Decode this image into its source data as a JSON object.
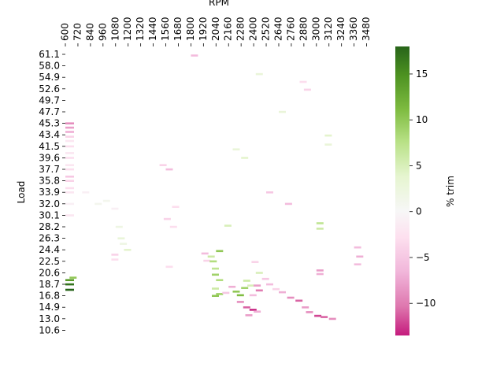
{
  "chart_data": {
    "type": "heatmap",
    "title": "",
    "xlabel": "RPM",
    "ylabel": "Load",
    "x_tick_labels": [
      "600",
      "720",
      "840",
      "960",
      "1080",
      "1200",
      "1320",
      "1440",
      "1560",
      "1680",
      "1800",
      "1920",
      "2040",
      "2160",
      "2280",
      "2400",
      "2520",
      "2640",
      "2760",
      "2880",
      "3000",
      "3120",
      "3240",
      "3360",
      "3480"
    ],
    "y_tick_labels": [
      "61.1",
      "58.0",
      "54.9",
      "52.6",
      "49.7",
      "47.7",
      "45.3",
      "43.4",
      "41.5",
      "39.6",
      "37.7",
      "35.8",
      "33.9",
      "32.0",
      "30.1",
      "28.2",
      "26.3",
      "24.4",
      "22.5",
      "20.6",
      "18.7",
      "16.8",
      "14.9",
      "13.0",
      "10.6"
    ],
    "xlim": [
      600,
      3560
    ],
    "ylim": [
      10.6,
      61.1
    ],
    "colorbar": {
      "label": "% trim",
      "ticks": [
        "−10",
        "−5",
        "0",
        "5",
        "10",
        "15"
      ],
      "tick_values": [
        -10,
        -5,
        0,
        5,
        10,
        15
      ],
      "vmin": -13.5,
      "vmax": 18,
      "colormap": "PiYG"
    },
    "cells": [
      {
        "rpm": 600,
        "load": 45.3,
        "v": -9
      },
      {
        "rpm": 600,
        "load": 44.6,
        "v": -8
      },
      {
        "rpm": 600,
        "load": 43.9,
        "v": -7
      },
      {
        "rpm": 600,
        "load": 43.1,
        "v": -4
      },
      {
        "rpm": 600,
        "load": 42.4,
        "v": -2
      },
      {
        "rpm": 600,
        "load": 41.5,
        "v": -3
      },
      {
        "rpm": 600,
        "load": 40.4,
        "v": -2
      },
      {
        "rpm": 600,
        "load": 39.6,
        "v": -3
      },
      {
        "rpm": 600,
        "load": 38.4,
        "v": -2
      },
      {
        "rpm": 600,
        "load": 37.7,
        "v": -3
      },
      {
        "rpm": 600,
        "load": 36.5,
        "v": -5
      },
      {
        "rpm": 600,
        "load": 35.8,
        "v": -4
      },
      {
        "rpm": 600,
        "load": 34.6,
        "v": -3
      },
      {
        "rpm": 600,
        "load": 33.9,
        "v": -2
      },
      {
        "rpm": 600,
        "load": 32.0,
        "v": -1
      },
      {
        "rpm": 600,
        "load": 30.1,
        "v": -2
      },
      {
        "rpm": 600,
        "load": 19.4,
        "v": 14
      },
      {
        "rpm": 600,
        "load": 18.7,
        "v": 17
      },
      {
        "rpm": 600,
        "load": 17.8,
        "v": 18
      },
      {
        "rpm": 640,
        "load": 19.8,
        "v": 10
      },
      {
        "rpm": 760,
        "load": 33.9,
        "v": -1
      },
      {
        "rpm": 880,
        "load": 32.0,
        "v": 1
      },
      {
        "rpm": 960,
        "load": 32.5,
        "v": 1
      },
      {
        "rpm": 1040,
        "load": 31.2,
        "v": -1
      },
      {
        "rpm": 1080,
        "load": 28.2,
        "v": 2
      },
      {
        "rpm": 1100,
        "load": 26.3,
        "v": 3
      },
      {
        "rpm": 1120,
        "load": 25.4,
        "v": 2
      },
      {
        "rpm": 1160,
        "load": 24.4,
        "v": 4
      },
      {
        "rpm": 1040,
        "load": 23.6,
        "v": -4
      },
      {
        "rpm": 1040,
        "load": 22.8,
        "v": -3
      },
      {
        "rpm": 1500,
        "load": 38.4,
        "v": -4
      },
      {
        "rpm": 1560,
        "load": 37.7,
        "v": -6
      },
      {
        "rpm": 1540,
        "load": 29.5,
        "v": -4
      },
      {
        "rpm": 1600,
        "load": 28.2,
        "v": -3
      },
      {
        "rpm": 1620,
        "load": 31.5,
        "v": -3
      },
      {
        "rpm": 1560,
        "load": 21.6,
        "v": -3
      },
      {
        "rpm": 1800,
        "load": 60.8,
        "v": -6
      },
      {
        "rpm": 1900,
        "load": 23.8,
        "v": -6
      },
      {
        "rpm": 1920,
        "load": 22.6,
        "v": -4
      },
      {
        "rpm": 1960,
        "load": 23.3,
        "v": 6
      },
      {
        "rpm": 1980,
        "load": 22.5,
        "v": 8
      },
      {
        "rpm": 2000,
        "load": 21.3,
        "v": 7
      },
      {
        "rpm": 2000,
        "load": 20.3,
        "v": 9
      },
      {
        "rpm": 2040,
        "load": 24.2,
        "v": 10
      },
      {
        "rpm": 2040,
        "load": 19.4,
        "v": 8
      },
      {
        "rpm": 2000,
        "load": 18.0,
        "v": 6
      },
      {
        "rpm": 2040,
        "load": 17.1,
        "v": 9
      },
      {
        "rpm": 2000,
        "load": 16.8,
        "v": 10
      },
      {
        "rpm": 2100,
        "load": 17.3,
        "v": -5
      },
      {
        "rpm": 2120,
        "load": 28.4,
        "v": 5
      },
      {
        "rpm": 2160,
        "load": 18.3,
        "v": -7
      },
      {
        "rpm": 2200,
        "load": 17.5,
        "v": 10
      },
      {
        "rpm": 2240,
        "load": 16.9,
        "v": 11
      },
      {
        "rpm": 2280,
        "load": 18.1,
        "v": 9
      },
      {
        "rpm": 2240,
        "load": 15.8,
        "v": -9
      },
      {
        "rpm": 2300,
        "load": 14.9,
        "v": -11
      },
      {
        "rpm": 2360,
        "load": 14.5,
        "v": -13
      },
      {
        "rpm": 2320,
        "load": 13.6,
        "v": -8
      },
      {
        "rpm": 2400,
        "load": 14.2,
        "v": -7
      },
      {
        "rpm": 2300,
        "load": 19.3,
        "v": 6
      },
      {
        "rpm": 2340,
        "load": 18.5,
        "v": 5
      },
      {
        "rpm": 2360,
        "load": 16.9,
        "v": -6
      },
      {
        "rpm": 2400,
        "load": 18.5,
        "v": -8
      },
      {
        "rpm": 2420,
        "load": 17.7,
        "v": -10
      },
      {
        "rpm": 2380,
        "load": 22.4,
        "v": -4
      },
      {
        "rpm": 2420,
        "load": 20.6,
        "v": 5
      },
      {
        "rpm": 2480,
        "load": 19.6,
        "v": -5
      },
      {
        "rpm": 2520,
        "load": 18.7,
        "v": -6
      },
      {
        "rpm": 2580,
        "load": 17.9,
        "v": -4
      },
      {
        "rpm": 2640,
        "load": 17.4,
        "v": -7
      },
      {
        "rpm": 2720,
        "load": 16.5,
        "v": -9
      },
      {
        "rpm": 2800,
        "load": 16.0,
        "v": -11
      },
      {
        "rpm": 2860,
        "load": 14.9,
        "v": -8
      },
      {
        "rpm": 2900,
        "load": 14.1,
        "v": -9
      },
      {
        "rpm": 2980,
        "load": 13.5,
        "v": -12
      },
      {
        "rpm": 3040,
        "load": 13.3,
        "v": -11
      },
      {
        "rpm": 3120,
        "load": 13.0,
        "v": -9
      },
      {
        "rpm": 3000,
        "load": 28.8,
        "v": 7
      },
      {
        "rpm": 3000,
        "load": 27.9,
        "v": 6
      },
      {
        "rpm": 3000,
        "load": 21.0,
        "v": -8
      },
      {
        "rpm": 3000,
        "load": 20.4,
        "v": -7
      },
      {
        "rpm": 3080,
        "load": 43.3,
        "v": 4
      },
      {
        "rpm": 3080,
        "load": 41.8,
        "v": 3
      },
      {
        "rpm": 2700,
        "load": 32.0,
        "v": -6
      },
      {
        "rpm": 2520,
        "load": 33.9,
        "v": -5
      },
      {
        "rpm": 3360,
        "load": 24.8,
        "v": -6
      },
      {
        "rpm": 3380,
        "load": 23.3,
        "v": -7
      },
      {
        "rpm": 3360,
        "load": 22.0,
        "v": -6
      },
      {
        "rpm": 2880,
        "load": 52.4,
        "v": -4
      },
      {
        "rpm": 2840,
        "load": 54.0,
        "v": -3
      },
      {
        "rpm": 2640,
        "load": 47.7,
        "v": 3
      },
      {
        "rpm": 2420,
        "load": 55.8,
        "v": 3
      },
      {
        "rpm": 2200,
        "load": 41.0,
        "v": 3
      },
      {
        "rpm": 2280,
        "load": 39.6,
        "v": 4
      }
    ]
  }
}
